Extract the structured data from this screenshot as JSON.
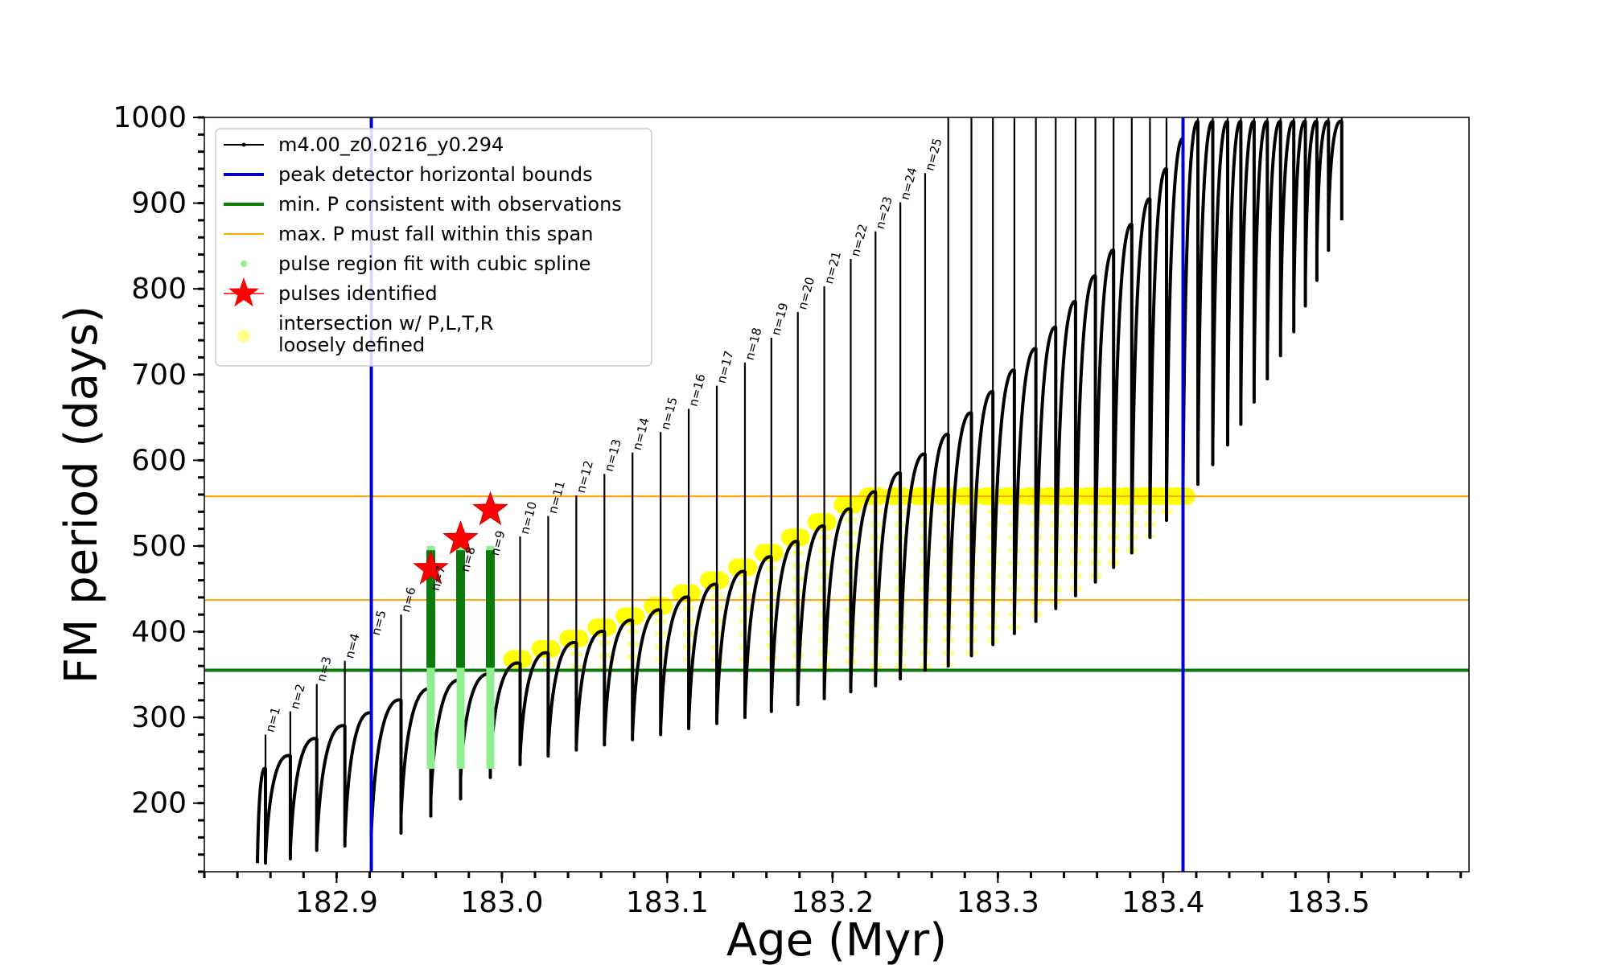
{
  "chart_data": {
    "type": "line",
    "xlabel": "Age (Myr)",
    "ylabel": "FM period (days)",
    "xlim": [
      182.82,
      183.585
    ],
    "ylim": [
      120,
      1000
    ],
    "xticks": [
      182.9,
      183.0,
      183.1,
      183.2,
      183.3,
      183.4,
      183.5
    ],
    "xtick_labels": [
      "182.9",
      "183.0",
      "183.1",
      "183.2",
      "183.3",
      "183.4",
      "183.5"
    ],
    "yticks": [
      200,
      300,
      400,
      500,
      600,
      700,
      800,
      900,
      1000
    ],
    "ytick_labels": [
      "200",
      "300",
      "400",
      "500",
      "600",
      "700",
      "800",
      "900",
      "1000"
    ],
    "grid": false,
    "legend_position": "top-left",
    "colors": {
      "track": "#000000",
      "bounds": "#0000dd",
      "min_p": "#0b7a0b",
      "max_p_span": "#ffa500",
      "spline": "#90ee90",
      "spline_dark": "#0b7a0b",
      "pulse": "#ff0000",
      "intersection": "#ffff00"
    },
    "series": [
      {
        "name": "m4.00_z0.0216_y0.294",
        "kind": "pulse-track",
        "pulses": [
          {
            "label": "n=1",
            "x": 182.857,
            "min": 130,
            "max": 245
          },
          {
            "label": "n=2",
            "x": 182.872,
            "min": 135,
            "max": 260
          },
          {
            "label": "n=3",
            "x": 182.888,
            "min": 145,
            "max": 280
          },
          {
            "label": "n=4",
            "x": 182.905,
            "min": 150,
            "max": 295
          },
          {
            "label": "n=5",
            "x": 182.921,
            "min": 158,
            "max": 310
          },
          {
            "label": "n=6",
            "x": 182.939,
            "min": 165,
            "max": 325
          },
          {
            "label": "n=7",
            "x": 182.957,
            "min": 185,
            "max": 338
          },
          {
            "label": "n=8",
            "x": 182.975,
            "min": 205,
            "max": 348
          },
          {
            "label": "n=9",
            "x": 182.993,
            "min": 230,
            "max": 355
          },
          {
            "label": "n=10",
            "x": 183.011,
            "min": 245,
            "max": 368
          },
          {
            "label": "n=11",
            "x": 183.028,
            "min": 255,
            "max": 380
          },
          {
            "label": "n=12",
            "x": 183.045,
            "min": 262,
            "max": 392
          },
          {
            "label": "n=13",
            "x": 183.062,
            "min": 268,
            "max": 405
          },
          {
            "label": "n=14",
            "x": 183.079,
            "min": 274,
            "max": 418
          },
          {
            "label": "n=15",
            "x": 183.096,
            "min": 280,
            "max": 430
          },
          {
            "label": "n=16",
            "x": 183.113,
            "min": 287,
            "max": 445
          },
          {
            "label": "n=17",
            "x": 183.13,
            "min": 293,
            "max": 460
          },
          {
            "label": "n=18",
            "x": 183.147,
            "min": 300,
            "max": 475
          },
          {
            "label": "n=19",
            "x": 183.163,
            "min": 307,
            "max": 492
          },
          {
            "label": "n=20",
            "x": 183.179,
            "min": 315,
            "max": 510
          },
          {
            "label": "n=21",
            "x": 183.195,
            "min": 322,
            "max": 528
          },
          {
            "label": "n=22",
            "x": 183.211,
            "min": 330,
            "max": 548
          },
          {
            "label": "n=23",
            "x": 183.226,
            "min": 337,
            "max": 568
          },
          {
            "label": "n=24",
            "x": 183.241,
            "min": 345,
            "max": 590
          },
          {
            "label": "n=25",
            "x": 183.256,
            "min": 355,
            "max": 612
          }
        ],
        "late_pulses_x": [
          183.27,
          183.284,
          183.297,
          183.31,
          183.323,
          183.335,
          183.347,
          183.359,
          183.37,
          183.381,
          183.392,
          183.402,
          183.412,
          183.421,
          183.43,
          183.439,
          183.447,
          183.455,
          183.463,
          183.471,
          183.479,
          183.486,
          183.493,
          183.5,
          183.508
        ],
        "late_pulses_min": [
          360,
          372,
          385,
          398,
          412,
          427,
          442,
          458,
          475,
          492,
          510,
          530,
          550,
          572,
          595,
          618,
          642,
          668,
          695,
          722,
          750,
          780,
          810,
          845,
          880
        ],
        "late_pulses_max": [
          635,
          660,
          685,
          710,
          735,
          760,
          790,
          820,
          850,
          880,
          910,
          945,
          980,
          1000,
          1000,
          1000,
          1000,
          1000,
          1000,
          1000,
          1000,
          1000,
          1000,
          1000,
          1000
        ]
      },
      {
        "name": "peak detector horizontal bounds",
        "kind": "vline",
        "x": [
          182.921,
          183.412
        ]
      },
      {
        "name": "min. P consistent with observations",
        "kind": "hline",
        "y": [
          355
        ]
      },
      {
        "name": "max. P must fall within this span",
        "kind": "hline",
        "y": [
          437,
          558
        ]
      },
      {
        "name": "pulse region fit with cubic spline",
        "kind": "markers",
        "x": [
          182.957,
          182.975,
          182.993
        ],
        "y_from": 240,
        "y_to": 500
      },
      {
        "name": "pulses identified",
        "kind": "stars",
        "points": [
          {
            "x": 182.957,
            "y": 473
          },
          {
            "x": 182.975,
            "y": 508
          },
          {
            "x": 182.993,
            "y": 542
          }
        ]
      },
      {
        "name": "intersection w/ P,L,T,R\nloosely defined",
        "kind": "band",
        "x_from": 183.0,
        "x_to": 183.412,
        "y_min": 355,
        "y_max": 558
      }
    ],
    "legend": [
      {
        "key": "track",
        "label": "m4.00_z0.0216_y0.294"
      },
      {
        "key": "bounds",
        "label": "peak detector horizontal bounds"
      },
      {
        "key": "min_p",
        "label": "min. P consistent with observations"
      },
      {
        "key": "max_p",
        "label": "max. P must fall within this span"
      },
      {
        "key": "spline",
        "label": "pulse region fit with cubic spline"
      },
      {
        "key": "pulse",
        "label": "pulses identified"
      },
      {
        "key": "intersection",
        "label": "intersection w/ P,L,T,R",
        "label2": "loosely defined"
      }
    ]
  }
}
